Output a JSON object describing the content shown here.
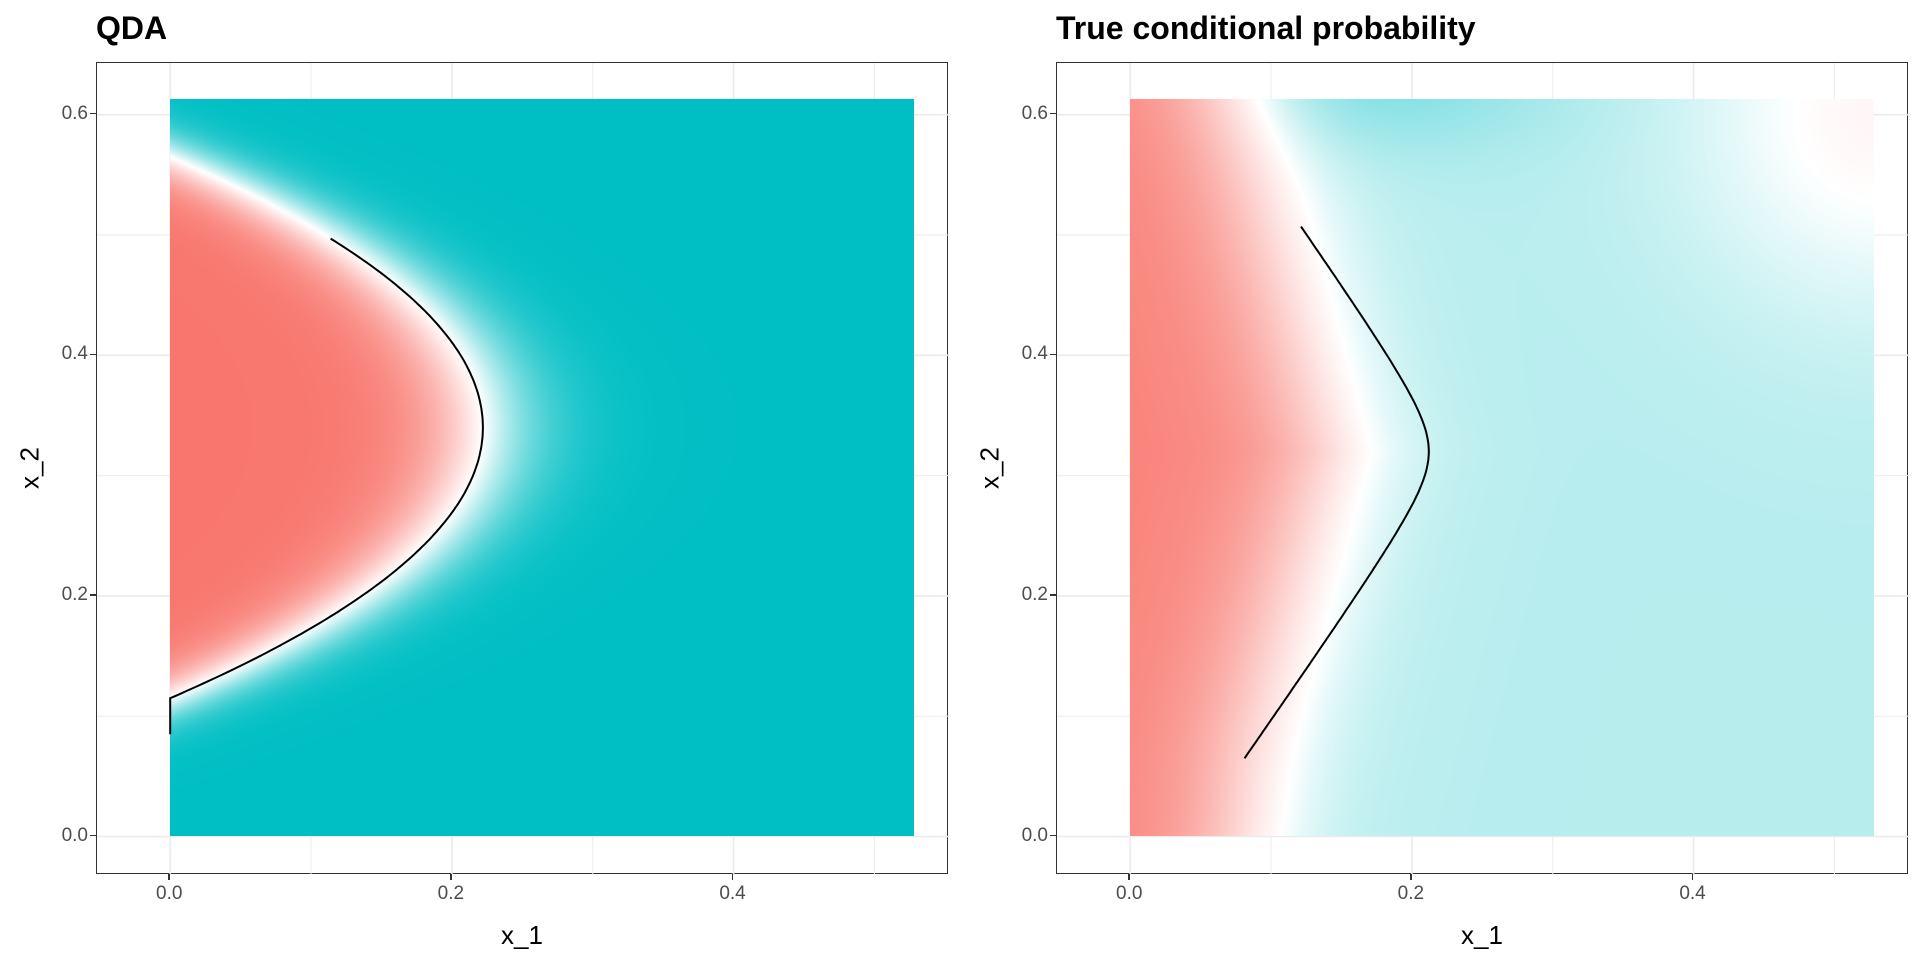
{
  "colors": {
    "class_a": "#F8766D",
    "class_b": "#00BFC4",
    "mid": "#FFFFFF",
    "frame": "#333333",
    "grid": "#EBEBEB",
    "contour": "#000000"
  },
  "chart_data": [
    {
      "type": "heatmap",
      "title": "QDA",
      "xlabel": "x_1",
      "ylabel": "x_2",
      "xlim": [
        -0.052,
        0.553
      ],
      "ylim": [
        -0.032,
        0.643
      ],
      "x_ticks": [
        "0.0",
        "0.2",
        "0.4"
      ],
      "y_ticks": [
        "0.0",
        "0.2",
        "0.4",
        "0.6"
      ],
      "grid": true,
      "legend": "none",
      "fill_range": {
        "x": [
          0,
          0.528
        ],
        "y": [
          0,
          0.613
        ]
      },
      "decision_boundary": {
        "level": 0.5,
        "x_vertex": 0.222,
        "y_vertex": 0.34,
        "y_at_x0": [
          0.085,
          0.498
        ]
      }
    },
    {
      "type": "heatmap",
      "title": "True conditional probability",
      "xlabel": "x_1",
      "ylabel": "x_2",
      "xlim": [
        -0.052,
        0.553
      ],
      "ylim": [
        -0.032,
        0.643
      ],
      "x_ticks": [
        "0.0",
        "0.2",
        "0.4"
      ],
      "y_ticks": [
        "0.0",
        "0.2",
        "0.4",
        "0.6"
      ],
      "grid": true,
      "legend": "none",
      "fill_range": {
        "x": [
          0,
          0.528
        ],
        "y": [
          0,
          0.613
        ]
      },
      "decision_boundary": {
        "level": 0.5,
        "x_vertex": 0.212,
        "y_vertex": 0.32,
        "y_at_x0": [
          0.065,
          0.507
        ]
      }
    }
  ]
}
